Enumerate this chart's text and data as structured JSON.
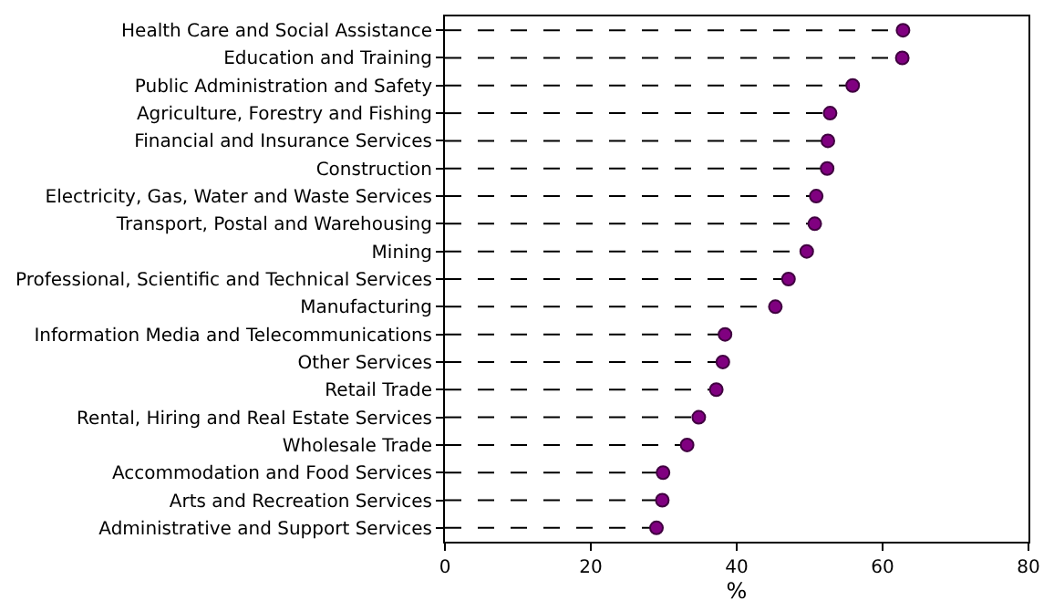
{
  "chart_data": {
    "type": "lollipop",
    "orientation": "horizontal",
    "xlabel": "%",
    "categories": [
      "Health Care and Social Assistance",
      "Education and Training",
      "Public Administration and Safety",
      "Agriculture, Forestry and Fishing",
      "Financial and Insurance Services",
      "Construction",
      "Electricity, Gas, Water and Waste Services",
      "Transport, Postal and Warehousing",
      "Mining",
      "Professional, Scientific and Technical Services",
      "Manufacturing",
      "Information Media and Telecommunications",
      "Other Services",
      "Retail Trade",
      "Rental, Hiring and Real Estate Services",
      "Wholesale Trade",
      "Accommodation and Food Services",
      "Arts and Recreation Services",
      "Administrative and Support Services"
    ],
    "values": [
      62.8,
      62.7,
      55.9,
      52.8,
      52.5,
      52.4,
      50.9,
      50.7,
      49.6,
      47.1,
      45.3,
      38.4,
      38.1,
      37.2,
      34.8,
      33.2,
      29.9,
      29.8,
      29.0
    ],
    "color": "#800080",
    "xlim": [
      0,
      80
    ],
    "xticks": [
      0,
      20,
      40,
      60,
      80
    ],
    "line_style": "dashed",
    "marker": "circle"
  }
}
